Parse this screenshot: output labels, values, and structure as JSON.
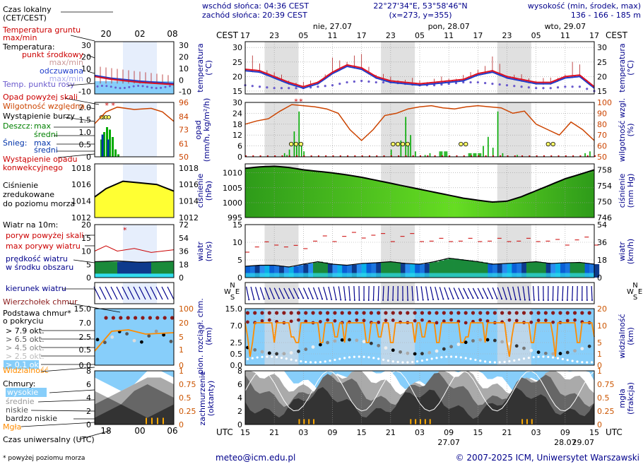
{
  "header": {
    "sunrise": "wschód słońca: 04:36 CEST",
    "sunset": "zachód słońca: 20:39 CEST",
    "coords": "22°27'34\"E, 53°58'46\"N",
    "grid": "(x=273,  y=355)",
    "height_label": "wysokość (min, środek, max)",
    "heights": "136 - 166 - 185 m"
  },
  "time": {
    "cest_label": "CEST",
    "utc_label": "UTC",
    "cest_ticks": [
      "17",
      "23",
      "05",
      "11",
      "17",
      "23",
      "05",
      "11",
      "17",
      "23",
      "05",
      "11",
      "17"
    ],
    "utc_ticks": [
      "15",
      "21",
      "03",
      "09",
      "15",
      "21",
      "03",
      "09",
      "15",
      "21",
      "03",
      "09",
      "15"
    ],
    "days": [
      "nie, 27.07",
      "pon, 28.07",
      "wto, 29.07"
    ],
    "dates_bottom": [
      "27.07",
      "28.07",
      "29.07"
    ],
    "legend_cet": [
      "20",
      "02",
      "08"
    ],
    "legend_utc": [
      "18",
      "00",
      "06"
    ]
  },
  "legend": {
    "tz_title": "Czas lokalny\n(CET/CEST)",
    "soil": "Temperatura gruntu\nmax/min",
    "temp": "Temperatura:",
    "mid": "punkt środkowy",
    "maxmin": "max/min",
    "felt": "odczuwana",
    "felt_mm": "max/min",
    "dew": "Temp. punktu rosy",
    "rain_above": "Opad powyżej skali",
    "rh": "Wilgotność względna",
    "storm": "Wystąpienie burzy",
    "rain": "Deszcz:",
    "rain_max": "max",
    "rain_mid": "średni",
    "snow": "Śnieg:",
    "snow_max": "max",
    "snow_mid": "średni",
    "conv": "Wystąpienie opadu\nkonwekcyjnego",
    "press": "Ciśnienie\nzredukowane\ndo poziomu morza",
    "wind_title": "Wiatr na 10m:",
    "gust_above": "poryw powyżej skali",
    "gust_max": "max porywy wiatru",
    "wind_mean": "prędkość wiatru\nw środku obszaru",
    "wind_dir": "kierunek wiatru",
    "cloud_top": "Wierzchołek chmur",
    "cloud_base": "Podstawa chmur*\no pokryciu",
    "okt": [
      "> 7.9 okt.",
      "> 6.5 okt.",
      "> 4.5 okt.",
      "> 2.5 okt.",
      "> 0.1 okt."
    ],
    "vis": "Widzialność",
    "clouds": "Chmury:",
    "cl": [
      "wysokie",
      "średnie",
      "niskie",
      "bardzo niskie"
    ],
    "fog": "Mgła",
    "utc_title": "Czas uniwersalny (UTC)",
    "footnote": "* powyżej poziomu morza"
  },
  "axes": {
    "temp_l": "temperatura\n(°C)",
    "temp_r": "temperatura\n(°C)",
    "rain_l": "opad\n(mm/h, kg/m²/h)",
    "rain_r": "wilgotność wzgl.\n(%)",
    "press_l": "ciśnienie\n(hPa)",
    "press_r": "ciśnienie\n(mm Hg)",
    "wind_l": "wiatr\n(m/s)",
    "wind_r": "wiatr\n(km/h)",
    "cb_l": "pion. rozciągł. chm.\n(km)",
    "cb_r": "widzialność\n(km)",
    "cl_l": "zachmurzenie\n(oktanty)",
    "cl_r": "mgła\n(frakcja)",
    "dir_labels": [
      "N",
      "W",
      "E",
      "S"
    ]
  },
  "footer": {
    "email": "meteo@icm.edu.pl",
    "copyright": "© 2007-2025 ICM, Uniwersytet Warszawski"
  },
  "colors": {
    "night": "#dcdcdc",
    "rh": "#cc4400",
    "press_fill": "#33cc00",
    "wind_blue": "#0055cc",
    "sky": "#87cefa"
  },
  "chart_data": [
    {
      "type": "line",
      "panel": "temperature",
      "yticks_l": [
        15,
        20,
        25,
        30
      ],
      "yticks_r": [
        15,
        20,
        25,
        30
      ],
      "ylim": [
        14,
        32
      ],
      "x_hours": [
        0,
        3,
        6,
        9,
        12,
        15,
        18,
        21,
        24,
        27,
        30,
        33,
        36,
        39,
        42,
        45,
        48,
        51,
        54,
        57,
        60,
        63,
        66,
        69,
        72
      ],
      "series": [
        {
          "name": "punkt środkowy",
          "values": [
            22.5,
            22,
            20,
            18,
            16.5,
            18,
            21.5,
            24,
            23,
            20,
            18.5,
            18,
            17.5,
            18,
            18.5,
            19,
            21,
            22,
            20,
            19,
            18,
            18,
            20,
            20.5,
            16.5
          ]
        },
        {
          "name": "odczuwana",
          "values": [
            22,
            21.5,
            19.5,
            17.5,
            16,
            17.5,
            21,
            23.5,
            22.5,
            19.5,
            18,
            17.5,
            17,
            17.5,
            18,
            18.5,
            20.5,
            21.5,
            19.5,
            18.5,
            17.5,
            17.5,
            19.5,
            20,
            16
          ]
        },
        {
          "name": "Temp. punktu rosy",
          "values": [
            17,
            16.5,
            16,
            16,
            16,
            16.5,
            17,
            18,
            18.5,
            18,
            18,
            17.5,
            17,
            17,
            17.5,
            18,
            18,
            17.5,
            17,
            16.5,
            16,
            16,
            16.5,
            16.5,
            15
          ]
        }
      ]
    },
    {
      "type": "bar",
      "panel": "precipitation",
      "yticks_l": [
        0,
        6,
        12,
        18,
        24,
        30
      ],
      "yticks_r": [
        50,
        60,
        70,
        80,
        90,
        100
      ],
      "ylim": [
        0,
        30
      ],
      "series": [
        {
          "name": "Wilgotność względna",
          "values": [
            80,
            83,
            85,
            92,
            98,
            97,
            96,
            94,
            90,
            75,
            65,
            75,
            88,
            90,
            94,
            96,
            97,
            95,
            94,
            96,
            97,
            96,
            95,
            90,
            92,
            80,
            75,
            70,
            82,
            75,
            65
          ]
        }
      ]
    },
    {
      "type": "area",
      "panel": "pressure",
      "yticks_l": [
        995,
        1000,
        1005,
        1010
      ],
      "yticks_r": [
        746,
        750,
        754,
        758
      ],
      "ylim": [
        995,
        1013
      ],
      "x_hours": [
        0,
        3,
        6,
        9,
        12,
        15,
        18,
        21,
        24,
        27,
        30,
        33,
        36,
        39,
        42,
        45,
        48,
        51,
        54,
        57,
        60,
        63,
        66,
        69,
        72
      ],
      "values": [
        1011.5,
        1012,
        1012.2,
        1011.8,
        1011,
        1010.5,
        1010,
        1009.3,
        1008.5,
        1007.5,
        1006.5,
        1005.5,
        1004.5,
        1003.5,
        1002.5,
        1001.5,
        1000.8,
        1000.2,
        1000.5,
        1002,
        1004,
        1006,
        1008,
        1009.5,
        1011
      ]
    },
    {
      "type": "area",
      "panel": "wind",
      "yticks_l": [
        0,
        5,
        10,
        15
      ],
      "yticks_r": [
        0,
        18,
        36,
        54
      ],
      "ylim": [
        0,
        15
      ],
      "x_hours": [
        0,
        3,
        6,
        9,
        12,
        15,
        18,
        21,
        24,
        27,
        30,
        33,
        36,
        39,
        42,
        45,
        48,
        51,
        54,
        57,
        60,
        63,
        66,
        69,
        72
      ],
      "series": [
        {
          "name": "prędkość wiatru",
          "values": [
            3.2,
            3.5,
            3.5,
            3.0,
            3.8,
            4.5,
            3.8,
            3.5,
            4.0,
            4.2,
            4.5,
            4.0,
            3.8,
            4.5,
            5.5,
            5.0,
            4.5,
            3.8,
            4.0,
            4.2,
            4.5,
            4.0,
            4.2,
            4.3,
            3.8
          ]
        },
        {
          "name": "max porywy wiatru",
          "values": [
            8,
            9,
            10,
            8,
            9,
            11,
            11,
            12,
            12,
            12,
            11,
            12,
            11,
            10,
            11,
            10,
            11,
            10,
            11,
            10,
            11,
            10,
            10,
            11,
            10
          ]
        }
      ]
    },
    {
      "type": "line",
      "panel": "cloud-base",
      "yticks_l": [
        0.0,
        0.5,
        2.5,
        7.0,
        15.0
      ],
      "yticks_r": [
        0,
        1,
        5,
        10,
        20
      ],
      "ylim": [
        0,
        15
      ]
    },
    {
      "type": "area",
      "panel": "clouds",
      "yticks_l": [
        0,
        2,
        4,
        6,
        8
      ],
      "yticks_r": [
        0,
        0.25,
        0.5,
        0.75,
        1
      ],
      "ylim": [
        0,
        8
      ]
    }
  ]
}
